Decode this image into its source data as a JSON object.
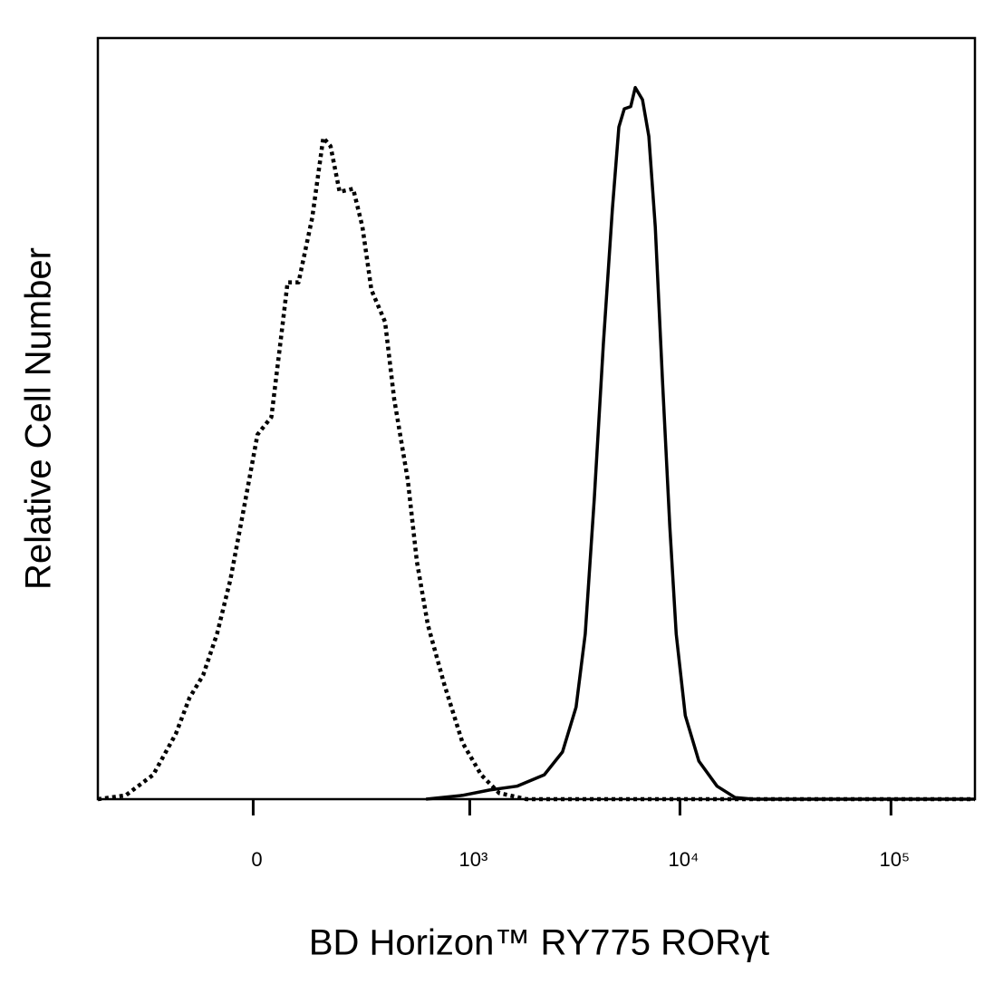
{
  "chart_data": {
    "type": "histogram-overlay",
    "xlabel": "BD Horizon™ RY775 RORγt",
    "ylabel": "Relative Cell Number",
    "xscale": "biexponential",
    "xlim": [
      -500,
      250000
    ],
    "ylim": [
      0,
      100
    ],
    "xticks": [
      0,
      {
        "value": 1000,
        "label": "10³"
      },
      {
        "value": 10000,
        "label": "10⁴"
      },
      {
        "value": 100000,
        "label": "10⁵"
      }
    ],
    "series": [
      {
        "color": "#000000",
        "style": "dotted",
        "x": [
          -500,
          -358,
          -251,
          -180,
          -143,
          -109,
          -77,
          -48,
          -19,
          9,
          38,
          57,
          73,
          98,
          131,
          160,
          180,
          207,
          251,
          284,
          319,
          378,
          422,
          496,
          551,
          625,
          752,
          923,
          1135,
          1385,
          1866,
          250000
        ],
        "values": [
          0,
          0.5,
          3.2,
          8.6,
          13.3,
          16.3,
          21.7,
          28.8,
          38.3,
          47.9,
          50.2,
          59.8,
          67.9,
          67.9,
          76.4,
          86.9,
          85.8,
          79.8,
          80.2,
          75.2,
          66.9,
          62.7,
          52.6,
          41.9,
          31.2,
          22.9,
          15.1,
          7.4,
          3.2,
          0.8,
          0,
          0
        ]
      },
      {
        "color": "#000000",
        "style": "solid",
        "x": [
          612,
          923,
          1247,
          1683,
          2271,
          2772,
          3217,
          3555,
          3925,
          4334,
          4786,
          5134,
          5447,
          5841,
          6137,
          6646,
          7122,
          7638,
          8265,
          8949,
          9595,
          10602,
          12293,
          15001,
          18285,
          22306,
          250000
        ],
        "values": [
          0,
          0.5,
          1.2,
          1.7,
          3.2,
          6.2,
          12.1,
          21.7,
          39.5,
          59.8,
          77.6,
          88.3,
          90.7,
          91.0,
          93.5,
          91.9,
          87.1,
          75.2,
          54.9,
          35.9,
          21.7,
          11.0,
          5.0,
          1.7,
          0.2,
          0,
          0
        ]
      }
    ]
  }
}
